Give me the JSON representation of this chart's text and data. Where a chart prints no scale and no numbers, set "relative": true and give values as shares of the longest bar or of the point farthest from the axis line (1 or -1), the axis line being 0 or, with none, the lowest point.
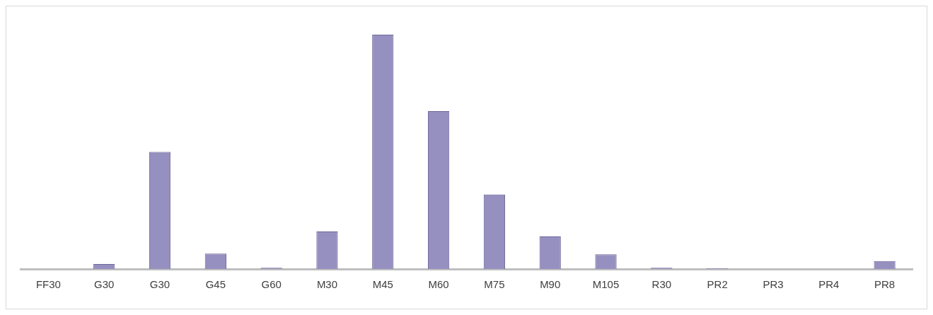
{
  "chart_data": {
    "type": "bar",
    "relative": true,
    "categories": [
      "FF30",
      "G30",
      "G30",
      "G45",
      "G60",
      "M30",
      "M45",
      "M60",
      "M75",
      "M90",
      "M105",
      "R30",
      "PR2",
      "PR3",
      "PR4",
      "PR8"
    ],
    "values": [
      0,
      0.021,
      0.5,
      0.066,
      0.005,
      0.16,
      1,
      0.674,
      0.318,
      0.139,
      0.063,
      0.005,
      0.003,
      0,
      0,
      0.034
    ],
    "color": "#9690c0",
    "grid": false,
    "legend": false
  }
}
